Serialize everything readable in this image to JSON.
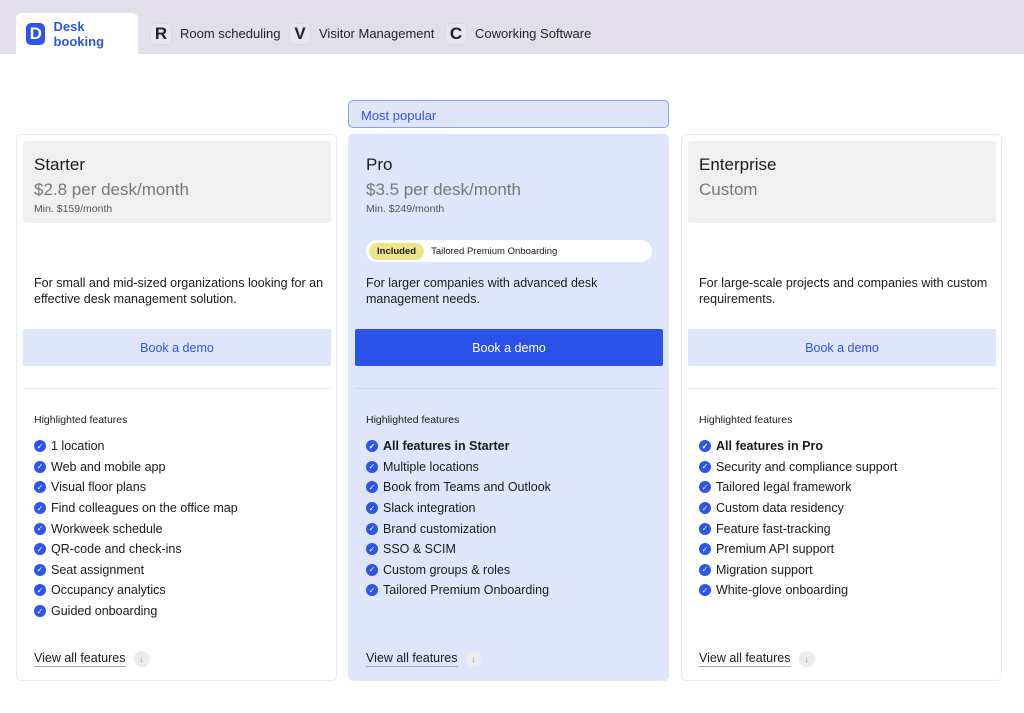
{
  "tabs": [
    {
      "letter": "D",
      "label": "Desk booking",
      "active": true
    },
    {
      "letter": "R",
      "label": "Room scheduling"
    },
    {
      "letter": "V",
      "label": "Visitor Management"
    },
    {
      "letter": "C",
      "label": "Coworking Software"
    }
  ],
  "badge": "Most popular",
  "plans": [
    {
      "name": "Starter",
      "price": "$2.8 per desk/month",
      "min": "Min. $159/month",
      "desc": "For small and mid-sized organizations looking for an effective desk management solution.",
      "button": "Book a demo",
      "features_heading": "Highlighted features",
      "features": [
        "1 location",
        "Web and mobile app",
        "Visual floor plans",
        "Find colleagues on the office map",
        "Workweek schedule",
        "QR-code and check-ins",
        "Seat assignment",
        "Occupancy analytics",
        "Guided onboarding"
      ],
      "view_all": "View all features"
    },
    {
      "name": "Pro",
      "price": "$3.5 per desk/month",
      "min": "Min. $249/month",
      "included_tag": "Included",
      "included_text": "Tailored Premium Onboarding",
      "desc": "For larger companies with advanced desk management needs.",
      "button": "Book a demo",
      "features_heading": "Highlighted features",
      "features": [
        "All features in Starter",
        "Multiple locations",
        "Book from Teams and Outlook",
        "Slack integration",
        "Brand customization",
        "SSO & SCIM",
        "Custom groups & roles",
        "Tailored Premium Onboarding"
      ],
      "view_all": "View all features"
    },
    {
      "name": "Enterprise",
      "price": "Custom",
      "desc": "For large-scale projects and companies with custom requirements.",
      "button": "Book a demo",
      "features_heading": "Highlighted features",
      "features": [
        "All features in Pro",
        "Security and compliance support",
        "Tailored legal framework",
        "Custom data residency",
        "Feature fast-tracking",
        "Premium API support",
        "Migration support",
        "White-glove onboarding"
      ],
      "view_all": "View all features"
    }
  ],
  "colors": {
    "accent": "#2f54eb",
    "pro_bg": "#dfe5fb",
    "tabbar": "#e2dfea",
    "included": "#ede58a"
  }
}
